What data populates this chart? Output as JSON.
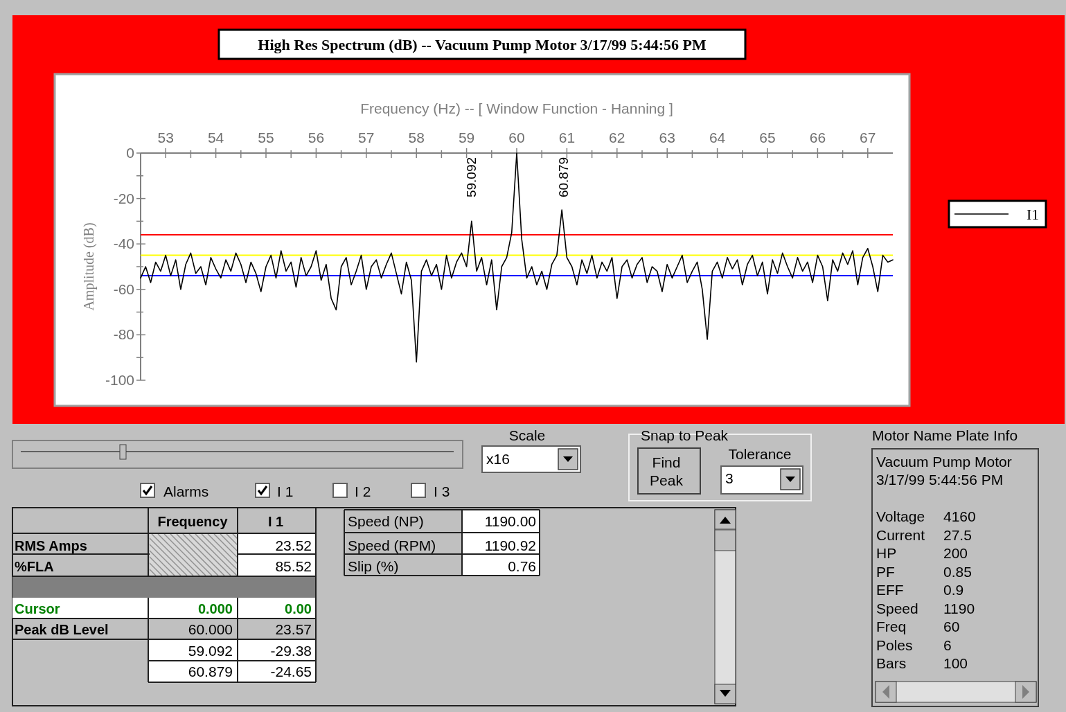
{
  "chart_data": [
    {
      "type": "line",
      "title": "High Res Spectrum (dB)  --  Vacuum Pump Motor  3/17/99 5:44:56 PM",
      "xlabel": "Frequency (Hz)  --  [ Window Function - Hanning ]",
      "ylabel": "Amplitude  (dB)",
      "xlim": [
        52.5,
        67.5
      ],
      "ylim": [
        -100,
        0
      ],
      "xticks": [
        53,
        {
          "value": 53.5,
          "label": null
        },
        54,
        {
          "value": 54.5,
          "label": null
        },
        55,
        {
          "value": 55.5,
          "label": null
        },
        56,
        {
          "value": 56.5,
          "label": null
        },
        57,
        {
          "value": 57.5,
          "label": null
        },
        58,
        {
          "value": 58.5,
          "label": null
        },
        59,
        {
          "value": 59.5,
          "label": null
        },
        60,
        {
          "value": 60.5,
          "label": null
        },
        61,
        {
          "value": 61.5,
          "label": null
        },
        62,
        {
          "value": 62.5,
          "label": null
        },
        63,
        {
          "value": 63.5,
          "label": null
        },
        64,
        {
          "value": 64.5,
          "label": null
        },
        65,
        {
          "value": 65.5,
          "label": null
        },
        66,
        {
          "value": 66.5,
          "label": null
        },
        67
      ],
      "yticks": [
        0,
        {
          "value": -10,
          "label": null
        },
        -20,
        {
          "value": -30,
          "label": null
        },
        -40,
        {
          "value": -50,
          "label": null
        },
        -60,
        {
          "value": -70,
          "label": null
        },
        -80,
        {
          "value": -90,
          "label": null
        },
        -100
      ],
      "x": [
        52.5,
        52.6,
        52.7,
        52.8,
        52.9,
        53.0,
        53.1,
        53.2,
        53.3,
        53.4,
        53.5,
        53.6,
        53.7,
        53.8,
        53.9,
        54.0,
        54.1,
        54.2,
        54.3,
        54.4,
        54.5,
        54.6,
        54.7,
        54.8,
        54.9,
        55.0,
        55.1,
        55.2,
        55.3,
        55.4,
        55.5,
        55.6,
        55.7,
        55.8,
        55.9,
        56.0,
        56.1,
        56.2,
        56.3,
        56.4,
        56.5,
        56.6,
        56.7,
        56.8,
        56.9,
        57.0,
        57.1,
        57.2,
        57.3,
        57.4,
        57.5,
        57.6,
        57.7,
        57.8,
        57.9,
        58.0,
        58.1,
        58.2,
        58.3,
        58.4,
        58.5,
        58.6,
        58.7,
        58.8,
        58.9,
        59.0,
        59.1,
        59.2,
        59.3,
        59.4,
        59.5,
        59.6,
        59.7,
        59.8,
        59.9,
        60.0,
        60.1,
        60.2,
        60.3,
        60.4,
        60.5,
        60.6,
        60.7,
        60.8,
        60.9,
        61.0,
        61.1,
        61.2,
        61.3,
        61.4,
        61.5,
        61.6,
        61.7,
        61.8,
        61.9,
        62.0,
        62.1,
        62.2,
        62.3,
        62.4,
        62.5,
        62.6,
        62.7,
        62.8,
        62.9,
        63.0,
        63.1,
        63.2,
        63.3,
        63.4,
        63.5,
        63.6,
        63.7,
        63.8,
        63.9,
        64.0,
        64.1,
        64.2,
        64.3,
        64.4,
        64.5,
        64.6,
        64.7,
        64.8,
        64.9,
        65.0,
        65.1,
        65.2,
        65.3,
        65.4,
        65.5,
        65.6,
        65.7,
        65.8,
        65.9,
        66.0,
        66.1,
        66.2,
        66.3,
        66.4,
        66.5,
        66.6,
        66.7,
        66.8,
        66.9,
        67.0,
        67.1,
        67.2,
        67.3,
        67.4,
        67.5
      ],
      "series": [
        {
          "name": "I1",
          "color": "#000000",
          "values": [
            -55,
            -50,
            -57,
            -48,
            -52,
            -45,
            -54,
            -47,
            -60,
            -49,
            -44,
            -53,
            -50,
            -58,
            -46,
            -51,
            -55,
            -47,
            -52,
            -44,
            -49,
            -57,
            -48,
            -53,
            -61,
            -50,
            -45,
            -55,
            -43,
            -52,
            -48,
            -59,
            -46,
            -54,
            -50,
            -43,
            -56,
            -49,
            -64,
            -69,
            -50,
            -46,
            -58,
            -52,
            -45,
            -60,
            -50,
            -47,
            -55,
            -49,
            -44,
            -53,
            -62,
            -48,
            -56,
            -92,
            -52,
            -47,
            -54,
            -49,
            -60,
            -45,
            -55,
            -48,
            -44,
            -50,
            -30,
            -52,
            -46,
            -58,
            -47,
            -69,
            -50,
            -46,
            -35,
            0,
            -38,
            -55,
            -50,
            -58,
            -52,
            -60,
            -49,
            -45,
            -25,
            -46,
            -50,
            -58,
            -47,
            -53,
            -45,
            -55,
            -48,
            -52,
            -46,
            -64,
            -50,
            -47,
            -55,
            -49,
            -46,
            -57,
            -50,
            -52,
            -61,
            -49,
            -55,
            -50,
            -45,
            -57,
            -52,
            -48,
            -60,
            -82,
            -52,
            -48,
            -55,
            -46,
            -51,
            -47,
            -58,
            -49,
            -45,
            -54,
            -48,
            -62,
            -47,
            -53,
            -44,
            -50,
            -55,
            -46,
            -52,
            -48,
            -57,
            -45,
            -50,
            -65,
            -47,
            -52,
            -44,
            -49,
            -43,
            -58,
            -46,
            -42,
            -50,
            -61,
            -45,
            -48,
            -47
          ]
        }
      ],
      "ref_lines": [
        {
          "axis": "y",
          "value": -36,
          "color": "#ff0000"
        },
        {
          "axis": "y",
          "value": -45,
          "color": "#ffff00"
        },
        {
          "axis": "y",
          "value": -54,
          "color": "#0000ff"
        }
      ],
      "annotations": [
        "59.092",
        "60.879"
      ],
      "legend": "right",
      "marker": "none",
      "line_style": "solid"
    },
    {
      "type": "other",
      "annotations": [
        "Scale",
        "x16",
        "Snap to Peak",
        "Find Peak",
        "Tolerance",
        "3",
        "Motor Name Plate Info",
        "Alarms",
        "I 1",
        "I 2",
        "I 3",
        "Frequency",
        "I 1",
        "RMS Amps",
        "23.52",
        "%FLA",
        "85.52",
        "Cursor",
        "0.000",
        "0.00",
        "Peak dB Level",
        "60.000",
        "23.57",
        "59.092",
        "-29.38",
        "60.879",
        "-24.65",
        "Speed (NP)",
        "1190.00",
        "Speed (RPM)",
        "1190.92",
        "Slip (%)",
        "0.76",
        "Vacuum Pump Motor",
        "3/17/99 5:44:56 PM",
        "Voltage",
        "4160",
        "Current",
        "27.5",
        "HP",
        "200",
        "PF",
        "0.85",
        "EFF",
        "0.9",
        "Speed",
        "1190",
        "Freq",
        "60",
        "Poles",
        "6",
        "Bars",
        "100"
      ]
    }
  ]
}
